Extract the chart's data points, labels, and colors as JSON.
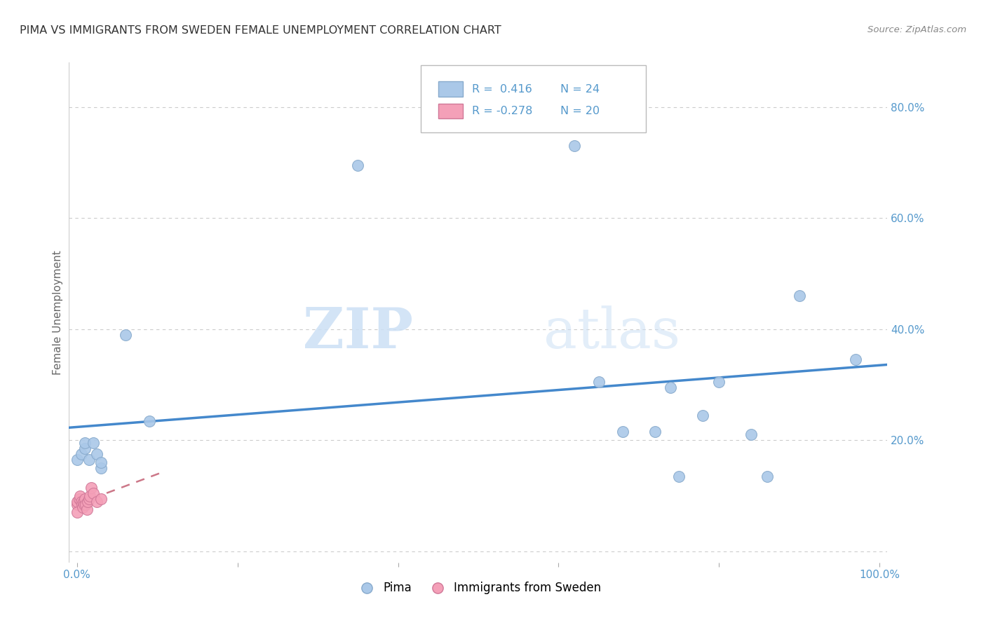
{
  "title": "PIMA VS IMMIGRANTS FROM SWEDEN FEMALE UNEMPLOYMENT CORRELATION CHART",
  "source": "Source: ZipAtlas.com",
  "xlabel": "",
  "ylabel": "Female Unemployment",
  "bg_color": "#ffffff",
  "plot_bg_color": "#ffffff",
  "watermark_zip": "ZIP",
  "watermark_atlas": "atlas",
  "pima_x": [
    0.0,
    0.005,
    0.01,
    0.01,
    0.015,
    0.02,
    0.025,
    0.03,
    0.03,
    0.06,
    0.09,
    0.35,
    0.62,
    0.65,
    0.68,
    0.72,
    0.74,
    0.75,
    0.78,
    0.8,
    0.84,
    0.86,
    0.9,
    0.97
  ],
  "pima_y": [
    0.165,
    0.175,
    0.185,
    0.195,
    0.165,
    0.195,
    0.175,
    0.15,
    0.16,
    0.39,
    0.235,
    0.695,
    0.73,
    0.305,
    0.215,
    0.215,
    0.295,
    0.135,
    0.245,
    0.305,
    0.21,
    0.135,
    0.46,
    0.345
  ],
  "sweden_x": [
    0.0,
    0.0,
    0.0,
    0.003,
    0.004,
    0.005,
    0.006,
    0.007,
    0.008,
    0.009,
    0.01,
    0.011,
    0.012,
    0.013,
    0.015,
    0.016,
    0.018,
    0.02,
    0.025,
    0.03
  ],
  "sweden_y": [
    0.085,
    0.09,
    0.07,
    0.095,
    0.1,
    0.09,
    0.085,
    0.08,
    0.09,
    0.085,
    0.095,
    0.085,
    0.075,
    0.09,
    0.095,
    0.1,
    0.115,
    0.105,
    0.09,
    0.095
  ],
  "pima_color": "#aac8e8",
  "pima_edge_color": "#88aacc",
  "sweden_color": "#f4a0b8",
  "sweden_edge_color": "#d07898",
  "pima_R": 0.416,
  "pima_N": 24,
  "sweden_R": -0.278,
  "sweden_N": 20,
  "trend_pima_color": "#4488cc",
  "trend_sweden_color": "#cc7788",
  "xmin": -0.01,
  "xmax": 1.01,
  "ymin": -0.02,
  "ymax": 0.88,
  "xticks": [
    0.0,
    0.2,
    0.4,
    0.6,
    0.8,
    1.0
  ],
  "xtick_labels": [
    "0.0%",
    "",
    "",
    "",
    "",
    "100.0%"
  ],
  "yticks": [
    0.0,
    0.2,
    0.4,
    0.6,
    0.8
  ],
  "ytick_labels_right": [
    "",
    "20.0%",
    "40.0%",
    "60.0%",
    "80.0%"
  ],
  "grid_color": "#cccccc",
  "marker_size": 130,
  "legend_pima_color": "#aac8e8",
  "legend_sweden_color": "#f4a0b8",
  "text_color_blue": "#5599cc",
  "text_color_dark": "#444444"
}
